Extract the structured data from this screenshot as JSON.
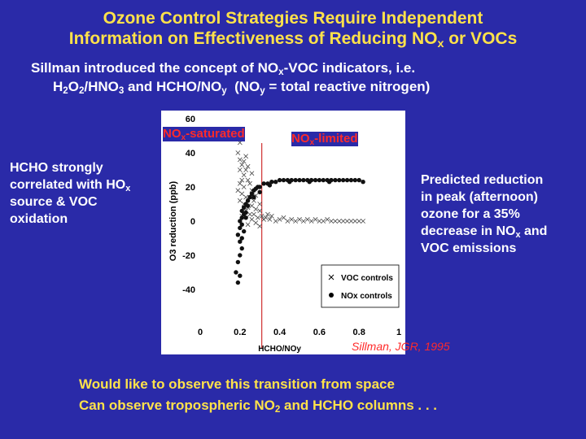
{
  "slide": {
    "title_line1": "Ozone Control Strategies Require Independent",
    "title_line2_pre": "Information on Effectiveness of Reducing NO",
    "title_line2_sub": "x",
    "title_line2_post": " or VOCs",
    "subtitle_l1_pre": "Sillman introduced the concept of NO",
    "subtitle_l1_sub": "x",
    "subtitle_l1_post": "-VOC indicators, i.e.",
    "subtitle_l2_a": "H",
    "subtitle_l2_a_sub": "2",
    "subtitle_l2_b": "O",
    "subtitle_l2_b_sub": "2",
    "subtitle_l2_c": "/HNO",
    "subtitle_l2_c_sub": "3",
    "subtitle_l2_d": " and HCHO/NO",
    "subtitle_l2_d_sub": "y",
    "subtitle_l2_e": "  (NO",
    "subtitle_l2_e_sub": "y",
    "subtitle_l2_f": " = total reactive nitrogen)",
    "left_note_l1": "HCHO strongly",
    "left_note_l2_pre": "correlated with HO",
    "left_note_l2_sub": "x",
    "left_note_l3": "source & VOC",
    "left_note_l4": "oxidation",
    "right_note_l1": "Predicted reduction",
    "right_note_l2": "in peak (afternoon)",
    "right_note_l3": "ozone for a 35%",
    "right_note_l4_pre": "decrease in NO",
    "right_note_l4_sub": "x",
    "right_note_l4_post": " and",
    "right_note_l5": "VOC emissions",
    "nox_saturated_pre": "NO",
    "nox_saturated_sub": "x",
    "nox_saturated_post": "-saturated",
    "nox_limited_pre": "NO",
    "nox_limited_sub": "x",
    "nox_limited_post": "-limited",
    "citation": "Sillman, JGR, 1995",
    "bottom_l1": "Would like to observe this transition from space",
    "bottom_l2_pre": "Can observe tropospheric NO",
    "bottom_l2_sub": "2",
    "bottom_l2_post": " and HCHO columns . . ."
  },
  "colors": {
    "background": "#2a2aa8",
    "title": "#ffe24a",
    "body_text": "#ffffff",
    "regime_labels": "#ff2a2a",
    "divider_line": "#d03030"
  },
  "chart_data": {
    "type": "scatter",
    "xlabel": "HCHO/NOy",
    "ylabel": "O3 reduction (ppb)",
    "xlim": [
      0,
      1
    ],
    "ylim": [
      -60,
      60
    ],
    "xticks": [
      0,
      0.2,
      0.4,
      0.6,
      0.8,
      1
    ],
    "xtick_labels": [
      "0",
      "0.2",
      "0.4",
      "0.6",
      "0.8",
      "1"
    ],
    "yticks": [
      -60,
      -40,
      -20,
      0,
      20,
      40,
      60
    ],
    "ytick_labels": [
      "",
      "-40",
      "-20",
      "0",
      "20",
      "40",
      "60"
    ],
    "transition_x": 0.31,
    "legend_position": "bottom-right",
    "series": [
      {
        "name": "VOC controls",
        "marker": "x",
        "points": [
          [
            0.18,
            53
          ],
          [
            0.19,
            48
          ],
          [
            0.2,
            46
          ],
          [
            0.19,
            40
          ],
          [
            0.2,
            36
          ],
          [
            0.21,
            33
          ],
          [
            0.2,
            30
          ],
          [
            0.22,
            27
          ],
          [
            0.21,
            24
          ],
          [
            0.2,
            22
          ],
          [
            0.22,
            20
          ],
          [
            0.19,
            18
          ],
          [
            0.21,
            16
          ],
          [
            0.23,
            14
          ],
          [
            0.2,
            12
          ],
          [
            0.22,
            10
          ],
          [
            0.24,
            8
          ],
          [
            0.23,
            6
          ],
          [
            0.25,
            4
          ],
          [
            0.21,
            3
          ],
          [
            0.24,
            24
          ],
          [
            0.23,
            30
          ],
          [
            0.25,
            22
          ],
          [
            0.26,
            18
          ],
          [
            0.25,
            14
          ],
          [
            0.27,
            12
          ],
          [
            0.26,
            9
          ],
          [
            0.28,
            7
          ],
          [
            0.27,
            4
          ],
          [
            0.29,
            2
          ],
          [
            0.3,
            6
          ],
          [
            0.31,
            3
          ],
          [
            0.32,
            1
          ],
          [
            0.33,
            2
          ],
          [
            0.34,
            4
          ],
          [
            0.35,
            1
          ],
          [
            0.36,
            3
          ],
          [
            0.38,
            0
          ],
          [
            0.4,
            1
          ],
          [
            0.42,
            2
          ],
          [
            0.44,
            0
          ],
          [
            0.46,
            1
          ],
          [
            0.48,
            0
          ],
          [
            0.5,
            1
          ],
          [
            0.52,
            0
          ],
          [
            0.54,
            1
          ],
          [
            0.56,
            0
          ],
          [
            0.58,
            1
          ],
          [
            0.6,
            0
          ],
          [
            0.62,
            0
          ],
          [
            0.64,
            1
          ],
          [
            0.66,
            0
          ],
          [
            0.68,
            0
          ],
          [
            0.7,
            0
          ],
          [
            0.72,
            0
          ],
          [
            0.74,
            0
          ],
          [
            0.76,
            0
          ],
          [
            0.78,
            0
          ],
          [
            0.8,
            0
          ],
          [
            0.82,
            0
          ],
          [
            0.22,
            35
          ],
          [
            0.23,
            38
          ],
          [
            0.24,
            32
          ],
          [
            0.26,
            28
          ],
          [
            0.28,
            15
          ],
          [
            0.3,
            10
          ],
          [
            0.24,
            -2
          ],
          [
            0.26,
            1
          ],
          [
            0.28,
            -1
          ],
          [
            0.3,
            -3
          ]
        ]
      },
      {
        "name": "NOx controls",
        "marker": "circle",
        "points": [
          [
            0.18,
            -30
          ],
          [
            0.19,
            -36
          ],
          [
            0.2,
            -32
          ],
          [
            0.19,
            -24
          ],
          [
            0.2,
            -20
          ],
          [
            0.21,
            -16
          ],
          [
            0.2,
            -12
          ],
          [
            0.19,
            -8
          ],
          [
            0.2,
            -4
          ],
          [
            0.21,
            -2
          ],
          [
            0.2,
            0
          ],
          [
            0.21,
            2
          ],
          [
            0.22,
            4
          ],
          [
            0.21,
            6
          ],
          [
            0.22,
            8
          ],
          [
            0.23,
            5
          ],
          [
            0.22,
            -6
          ],
          [
            0.21,
            -10
          ],
          [
            0.23,
            10
          ],
          [
            0.24,
            12
          ],
          [
            0.25,
            14
          ],
          [
            0.26,
            16
          ],
          [
            0.27,
            18
          ],
          [
            0.28,
            19
          ],
          [
            0.29,
            20
          ],
          [
            0.3,
            20
          ],
          [
            0.32,
            22
          ],
          [
            0.34,
            22
          ],
          [
            0.36,
            23
          ],
          [
            0.38,
            23
          ],
          [
            0.4,
            24
          ],
          [
            0.42,
            24
          ],
          [
            0.44,
            24
          ],
          [
            0.46,
            24
          ],
          [
            0.48,
            24
          ],
          [
            0.5,
            24
          ],
          [
            0.52,
            24
          ],
          [
            0.54,
            24
          ],
          [
            0.56,
            24
          ],
          [
            0.58,
            24
          ],
          [
            0.6,
            24
          ],
          [
            0.62,
            24
          ],
          [
            0.64,
            24
          ],
          [
            0.66,
            24
          ],
          [
            0.68,
            24
          ],
          [
            0.7,
            24
          ],
          [
            0.72,
            24
          ],
          [
            0.74,
            24
          ],
          [
            0.76,
            24
          ],
          [
            0.78,
            24
          ],
          [
            0.8,
            24
          ],
          [
            0.82,
            23
          ],
          [
            0.35,
            21
          ],
          [
            0.45,
            23
          ],
          [
            0.55,
            23
          ],
          [
            0.65,
            23
          ],
          [
            0.3,
            17
          ],
          [
            0.27,
            14
          ],
          [
            0.24,
            9
          ],
          [
            0.23,
            2
          ]
        ]
      }
    ]
  }
}
